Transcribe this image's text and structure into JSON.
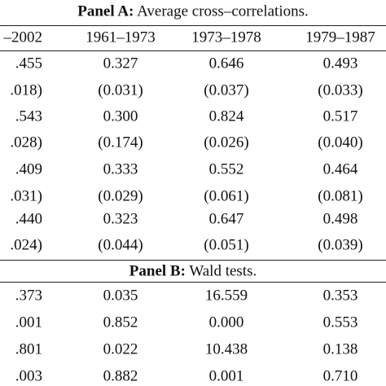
{
  "panel_a": {
    "label": "Panel A:",
    "title": "Average cross–correlations.",
    "header": [
      "–2002",
      "1961–1973",
      "1973–1978",
      "1979–1987"
    ],
    "rows": [
      [
        ".455",
        "0.327",
        "0.646",
        "0.493"
      ],
      [
        ".018)",
        "(0.031)",
        "(0.037)",
        "(0.033)"
      ],
      [
        ".543",
        "0.300",
        "0.824",
        "0.517"
      ],
      [
        ".028)",
        "(0.174)",
        "(0.026)",
        "(0.040)"
      ],
      [
        ".409",
        "0.333",
        "0.552",
        "0.464"
      ],
      [
        ".031)",
        "(0.029)",
        "(0.061)",
        "(0.081)"
      ],
      [
        ".440",
        "0.323",
        "0.647",
        "0.498"
      ],
      [
        ".024)",
        "(0.044)",
        "(0.051)",
        "(0.039)"
      ]
    ]
  },
  "panel_b": {
    "label": "Panel B:",
    "title": "Wald tests.",
    "rows": [
      [
        ".373",
        "0.035",
        "16.559",
        "0.353"
      ],
      [
        ".001",
        "0.852",
        "0.000",
        "0.553"
      ],
      [
        ".801",
        "0.022",
        "10.438",
        "0.138"
      ],
      [
        ".003",
        "0.882",
        "0.001",
        "0.710"
      ]
    ]
  }
}
